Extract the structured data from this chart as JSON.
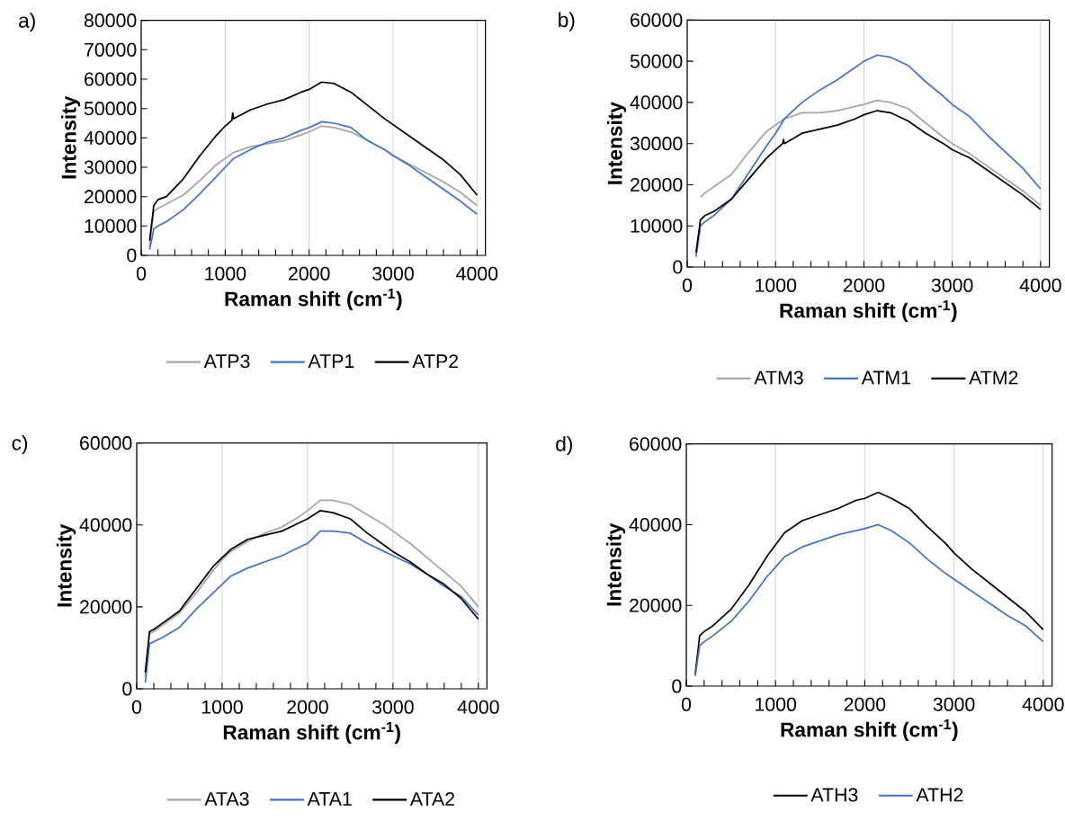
{
  "chart_data": [
    {
      "type": "line",
      "title": "a)",
      "xlabel": "Raman shift (cm$^{-1}$)",
      "ylabel": "Intensity",
      "xlim": [
        0,
        4100
      ],
      "ylim": [
        0,
        80000
      ],
      "xticks": [
        0,
        1000,
        2000,
        3000,
        4000
      ],
      "yticks": [
        0,
        10000,
        20000,
        30000,
        40000,
        50000,
        60000,
        70000,
        80000
      ],
      "grid": "x",
      "legend": "bottom",
      "x": [
        100,
        150,
        200,
        300,
        500,
        700,
        900,
        1000,
        1100,
        1300,
        1500,
        1700,
        1900,
        2000,
        2150,
        2300,
        2500,
        2700,
        2900,
        3000,
        3200,
        3400,
        3600,
        3800,
        4000
      ],
      "series": [
        {
          "name": "ATP3",
          "color": "#a5a5a5",
          "values": [
            3000,
            15000,
            16000,
            17500,
            20500,
            25500,
            31000,
            33000,
            35000,
            37000,
            38000,
            39000,
            41000,
            42000,
            44000,
            43500,
            42000,
            39000,
            36000,
            34000,
            31000,
            28000,
            25000,
            21500,
            17000
          ]
        },
        {
          "name": "ATP1",
          "color": "#4472c4",
          "values": [
            2000,
            9000,
            10000,
            11500,
            15500,
            21000,
            27000,
            30000,
            33000,
            36000,
            38500,
            40000,
            42500,
            43500,
            45500,
            45000,
            43500,
            39000,
            36000,
            34000,
            30500,
            26500,
            22500,
            18500,
            14000
          ]
        },
        {
          "name": "ATP2",
          "color": "#000000",
          "x": [
            100,
            150,
            200,
            300,
            500,
            700,
            900,
            1000,
            1080,
            1090,
            1100,
            1300,
            1500,
            1700,
            1900,
            2000,
            2150,
            2300,
            2500,
            2700,
            2900,
            3000,
            3200,
            3400,
            3600,
            3800,
            4000
          ],
          "values": [
            5000,
            17000,
            19000,
            20000,
            26000,
            34000,
            41000,
            44000,
            46000,
            48500,
            46500,
            49500,
            51500,
            53000,
            55500,
            56500,
            59000,
            58500,
            55500,
            51000,
            46500,
            44500,
            40500,
            36500,
            32500,
            27500,
            20500
          ]
        }
      ]
    },
    {
      "type": "line",
      "title": "b)",
      "xlabel": "Raman shift (cm$^{-1}$)",
      "ylabel": "Intensity",
      "xlim": [
        0,
        4100
      ],
      "ylim": [
        0,
        60000
      ],
      "xticks": [
        0,
        1000,
        2000,
        3000,
        4000
      ],
      "yticks": [
        0,
        10000,
        20000,
        30000,
        40000,
        50000,
        60000
      ],
      "grid": "x",
      "legend": "bottom",
      "x": [
        100,
        150,
        200,
        300,
        500,
        700,
        900,
        1000,
        1100,
        1300,
        1500,
        1700,
        1900,
        2000,
        2150,
        2300,
        2500,
        2700,
        2900,
        3000,
        3200,
        3400,
        3600,
        3800,
        4000
      ],
      "series": [
        {
          "name": "ATM3",
          "color": "#a5a5a5",
          "values": [
            null,
            17000,
            18000,
            19500,
            22500,
            28000,
            33000,
            34500,
            36000,
            37500,
            37500,
            38000,
            39000,
            39500,
            40500,
            40000,
            38500,
            35000,
            31500,
            30000,
            27500,
            24500,
            21500,
            18500,
            15000
          ]
        },
        {
          "name": "ATM1",
          "color": "#4472c4",
          "values": [
            2500,
            10000,
            11000,
            12500,
            16500,
            23000,
            29500,
            32500,
            36000,
            40000,
            43000,
            45500,
            48500,
            50000,
            51500,
            51000,
            49000,
            45000,
            41500,
            39500,
            36500,
            32000,
            28000,
            24000,
            19000
          ]
        },
        {
          "name": "ATM2",
          "color": "#000000",
          "x": [
            100,
            150,
            200,
            300,
            500,
            700,
            900,
            1000,
            1080,
            1090,
            1100,
            1300,
            1500,
            1700,
            1900,
            2000,
            2150,
            2300,
            2500,
            2700,
            2900,
            3000,
            3200,
            3400,
            3600,
            3800,
            4000
          ],
          "values": [
            3500,
            11500,
            12500,
            13500,
            16500,
            21500,
            26500,
            28500,
            30000,
            31000,
            30000,
            32500,
            33500,
            34500,
            36000,
            37000,
            38000,
            37500,
            35500,
            32500,
            30000,
            28500,
            26500,
            23500,
            20500,
            17500,
            14000
          ]
        }
      ]
    },
    {
      "type": "line",
      "title": "c)",
      "xlabel": "Raman shift (cm$^{-1}$)",
      "ylabel": "Intensity",
      "xlim": [
        0,
        4100
      ],
      "ylim": [
        0,
        60000
      ],
      "xticks": [
        0,
        1000,
        2000,
        3000,
        4000
      ],
      "yticks": [
        0,
        20000,
        40000,
        60000
      ],
      "grid": "x",
      "legend": "bottom",
      "x": [
        100,
        150,
        200,
        300,
        500,
        700,
        900,
        1000,
        1100,
        1300,
        1500,
        1700,
        1900,
        2000,
        2150,
        2300,
        2500,
        2700,
        2900,
        3000,
        3200,
        3400,
        3600,
        3800,
        4000
      ],
      "series": [
        {
          "name": "ATA3",
          "color": "#a5a5a5",
          "values": [
            3000,
            13500,
            14000,
            15500,
            18500,
            23500,
            29000,
            31500,
            33500,
            36000,
            38000,
            39500,
            42000,
            43500,
            46000,
            46000,
            45000,
            42500,
            40000,
            38500,
            35500,
            32000,
            28500,
            25000,
            20000
          ]
        },
        {
          "name": "ATA1",
          "color": "#4472c4",
          "values": [
            1500,
            11000,
            11500,
            12500,
            15000,
            19500,
            23500,
            25500,
            27500,
            29500,
            31000,
            32500,
            34500,
            35500,
            38500,
            38500,
            38000,
            35500,
            33500,
            32500,
            30500,
            28000,
            25000,
            22500,
            18000
          ]
        },
        {
          "name": "ATA2",
          "color": "#000000",
          "values": [
            4000,
            14000,
            14500,
            16000,
            19000,
            24500,
            30000,
            32000,
            34000,
            36500,
            37500,
            38500,
            40500,
            41500,
            43500,
            43000,
            41500,
            38000,
            35000,
            33500,
            31000,
            28000,
            25500,
            22000,
            17000
          ]
        }
      ]
    },
    {
      "type": "line",
      "title": "d)",
      "xlabel": "Raman shift (cm$^{-1}$)",
      "ylabel": "Intensity",
      "xlim": [
        0,
        4100
      ],
      "ylim": [
        0,
        60000
      ],
      "xticks": [
        0,
        1000,
        2000,
        3000,
        4000
      ],
      "yticks": [
        0,
        20000,
        40000,
        60000
      ],
      "grid": "x",
      "legend": "bottom",
      "x": [
        100,
        150,
        200,
        300,
        500,
        700,
        900,
        1000,
        1100,
        1300,
        1500,
        1700,
        1900,
        2000,
        2150,
        2300,
        2500,
        2700,
        2900,
        3000,
        3200,
        3400,
        3600,
        3800,
        4000
      ],
      "series": [
        {
          "name": "ATH3",
          "color": "#000000",
          "values": [
            3000,
            12500,
            13500,
            15000,
            19000,
            25000,
            32000,
            35000,
            38000,
            41000,
            42500,
            44000,
            46000,
            46500,
            48000,
            46500,
            44000,
            39500,
            35500,
            33000,
            29000,
            25500,
            22000,
            18500,
            14000
          ]
        },
        {
          "name": "ATH2",
          "color": "#4472c4",
          "values": [
            2500,
            10000,
            11000,
            12500,
            16000,
            21000,
            27000,
            29500,
            32000,
            34500,
            36000,
            37500,
            38500,
            39000,
            40000,
            38500,
            35500,
            31500,
            28000,
            26500,
            23500,
            20500,
            17500,
            15000,
            11000
          ]
        }
      ]
    }
  ]
}
